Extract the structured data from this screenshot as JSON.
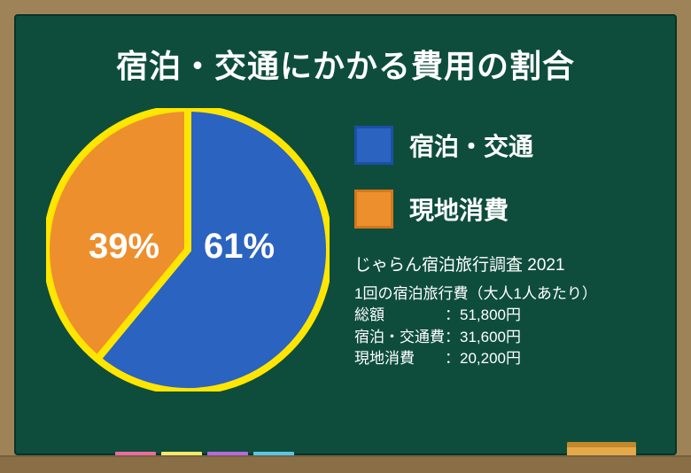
{
  "title": "宿泊・交通にかかる費用の割合",
  "pie": {
    "type": "pie",
    "radius": 160,
    "stroke_color": "#ffe600",
    "stroke_width": 8,
    "start_angle_deg": -90,
    "slices": [
      {
        "label": "宿泊・交通",
        "value": 61,
        "pct_label": "61%",
        "color": "#2b63c0"
      },
      {
        "label": "現地消費",
        "value": 39,
        "pct_label": "39%",
        "color": "#ee8f2e"
      }
    ]
  },
  "legend": [
    {
      "swatch_fill": "#2b63c0",
      "swatch_border": "#1c4fa8",
      "label": "宿泊・交通"
    },
    {
      "swatch_fill": "#ee8f2e",
      "swatch_border": "#d5771c",
      "label": "現地消費"
    }
  ],
  "source": {
    "title": "じゃらん宿泊旅行調査 2021",
    "line1": "1回の宿泊旅行費（大人1人あたり）",
    "line2": "総額　　　　：51,800円",
    "line3": "宿泊・交通費：31,600円",
    "line4": "現地消費　　：20,200円"
  },
  "chalk_colors": [
    "#ec6aa0",
    "#f5e96a",
    "#b66adf",
    "#5ac5ea"
  ],
  "colors": {
    "frame": "#9f8358",
    "board": "#0e4d3c",
    "title_text": "#ffffff",
    "label_text": "#ffffff"
  }
}
